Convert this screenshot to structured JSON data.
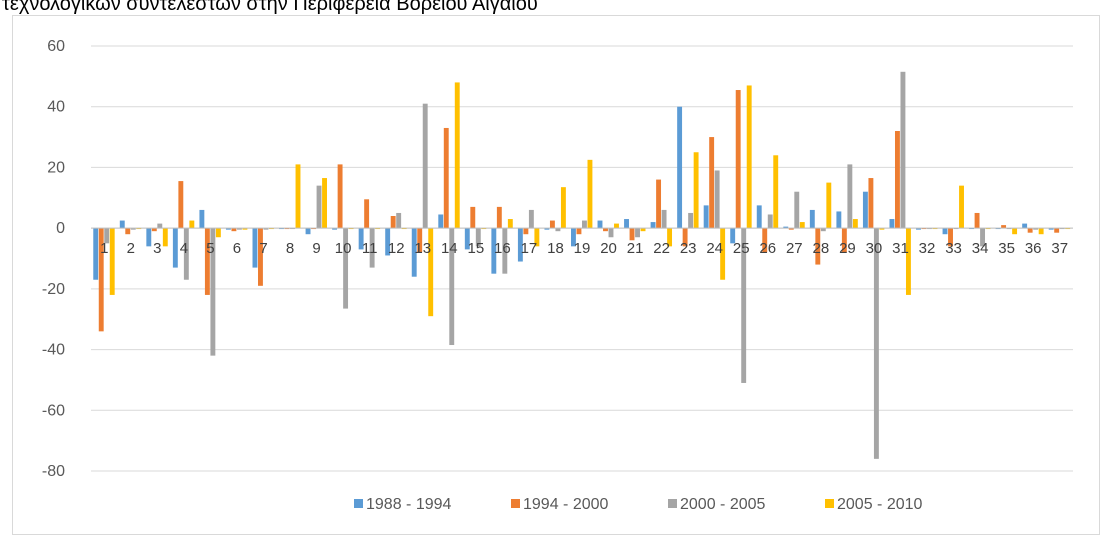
{
  "title": "τεχνολογικών συντελεστών στην Περιφέρεια Βορείου Αιγαίου",
  "colors": {
    "series": [
      "#5b9bd5",
      "#ed7d31",
      "#a5a5a5",
      "#ffc000"
    ],
    "grid": "#d9d9d9",
    "axis": "#d9d9d9"
  },
  "chart_data": {
    "type": "bar",
    "title": "",
    "xlabel": "",
    "ylabel": "",
    "ylim": [
      -80,
      60
    ],
    "yticks": [
      60,
      40,
      20,
      0,
      -20,
      -40,
      -60,
      -80
    ],
    "grid": true,
    "legend_position": "bottom",
    "categories": [
      "1",
      "2",
      "3",
      "4",
      "5",
      "6",
      "7",
      "8",
      "9",
      "10",
      "11",
      "12",
      "13",
      "14",
      "15",
      "16",
      "17",
      "18",
      "19",
      "20",
      "21",
      "22",
      "23",
      "24",
      "25",
      "26",
      "27",
      "28",
      "29",
      "30",
      "31",
      "32",
      "33",
      "34",
      "35",
      "36",
      "37"
    ],
    "series": [
      {
        "name": "1988 - 1994",
        "values": [
          -17,
          2.5,
          -6,
          -13,
          6,
          -0.5,
          -13,
          -0.3,
          -2,
          -0.5,
          -7,
          -9,
          -16,
          4.5,
          -7,
          -15,
          -11,
          -0.5,
          -6,
          2.5,
          3,
          2,
          40,
          7.5,
          -5,
          7.5,
          0.5,
          6,
          5.5,
          12,
          3,
          -0.5,
          -2,
          -0.3,
          -0.3,
          1.5,
          -0.5
        ]
      },
      {
        "name": "1994 - 2000",
        "values": [
          -34,
          -2,
          -1,
          15.5,
          -22,
          -1,
          -19,
          -0.3,
          -0.3,
          21,
          9.5,
          4,
          -8,
          33,
          7,
          7,
          -2,
          2.5,
          -2,
          -1,
          -4,
          16,
          -6,
          30,
          45.5,
          -8,
          -0.5,
          -12,
          -8,
          16.5,
          32,
          -0.3,
          -6,
          5,
          1,
          -1.5,
          -1.5
        ]
      },
      {
        "name": "2000 - 2005",
        "values": [
          -5,
          -0.5,
          1.5,
          -17,
          -42,
          -0.5,
          -0.5,
          -0.3,
          14,
          -26.5,
          -13,
          5,
          41,
          -38.5,
          -6,
          -15,
          6,
          -1,
          2.5,
          -3,
          -3,
          6,
          5,
          19,
          -51,
          4.5,
          12,
          -1,
          21,
          -76,
          51.5,
          -0.3,
          -0.3,
          -6,
          -0.3,
          -0.5,
          -0.3
        ]
      },
      {
        "name": "2005 - 2010",
        "values": [
          -22,
          -0.3,
          -6,
          2.5,
          -3,
          -0.5,
          -0.3,
          21,
          16.5,
          -0.3,
          -0.3,
          -0.3,
          -29,
          48,
          -0.3,
          3,
          -6,
          13.5,
          22.5,
          1.5,
          -1,
          -6,
          25,
          -17,
          47,
          24,
          2,
          15,
          3,
          -0.5,
          -22,
          -0.3,
          14,
          -0.3,
          -2,
          -2,
          -0.3
        ]
      }
    ]
  }
}
